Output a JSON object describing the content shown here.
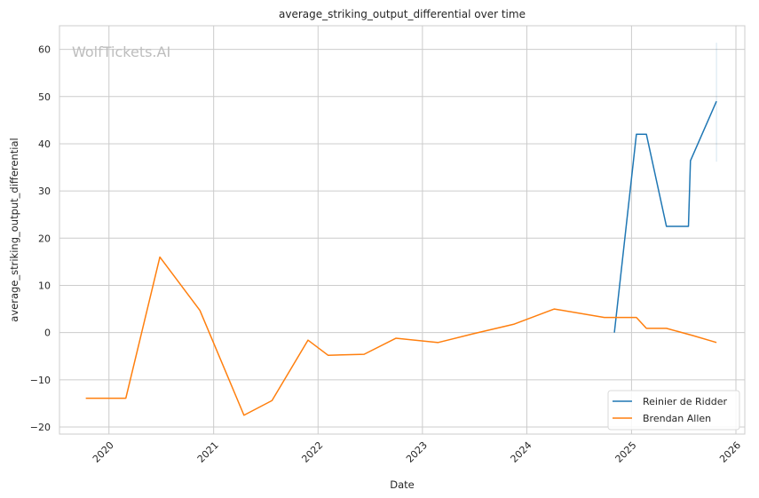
{
  "watermark": "WolfTickets.AI",
  "chart_data": {
    "type": "line",
    "title": "average_striking_output_differential over time",
    "xlabel": "Date",
    "ylabel": "average_striking_output_differential",
    "x_ticks": [
      "2020",
      "2021",
      "2022",
      "2023",
      "2024",
      "2025",
      "2026"
    ],
    "y_ticks": [
      -20,
      -10,
      0,
      10,
      20,
      30,
      40,
      50,
      60
    ],
    "xlim": [
      "2019-07-12",
      "2026-02-01"
    ],
    "ylim": [
      -21.5,
      65
    ],
    "grid": true,
    "legend_position": "bottom-right",
    "series": [
      {
        "name": "Reinier de Ridder",
        "color": "#1f77b4",
        "points": [
          [
            "2024-11-02",
            0
          ],
          [
            "2025-01-18",
            42
          ],
          [
            "2025-02-22",
            42
          ],
          [
            "2025-05-03",
            22.5
          ],
          [
            "2025-07-19",
            22.5
          ],
          [
            "2025-07-26",
            36.4
          ],
          [
            "2025-10-25",
            49
          ]
        ],
        "error_band": {
          "x": "2025-10-25",
          "low": 36.2,
          "high": 61.4
        }
      },
      {
        "name": "Brendan Allen",
        "color": "#ff7f0e",
        "points": [
          [
            "2019-10-12",
            -13.9
          ],
          [
            "2020-02-29",
            -13.9
          ],
          [
            "2020-06-27",
            16
          ],
          [
            "2020-11-14",
            4.7
          ],
          [
            "2021-04-17",
            -17.5
          ],
          [
            "2021-07-24",
            -14.4
          ],
          [
            "2021-11-27",
            -1.6
          ],
          [
            "2022-02-05",
            -4.8
          ],
          [
            "2022-06-11",
            -4.6
          ],
          [
            "2022-09-30",
            -1.2
          ],
          [
            "2023-02-25",
            -2.1
          ],
          [
            "2023-06-24",
            -0.3
          ],
          [
            "2023-11-18",
            1.8
          ],
          [
            "2024-04-06",
            5
          ],
          [
            "2024-09-28",
            3.2
          ],
          [
            "2025-01-18",
            3.2
          ],
          [
            "2025-02-22",
            0.9
          ],
          [
            "2025-05-03",
            0.9
          ],
          [
            "2025-08-02",
            -0.6
          ],
          [
            "2025-10-25",
            -2.1
          ]
        ]
      }
    ]
  }
}
